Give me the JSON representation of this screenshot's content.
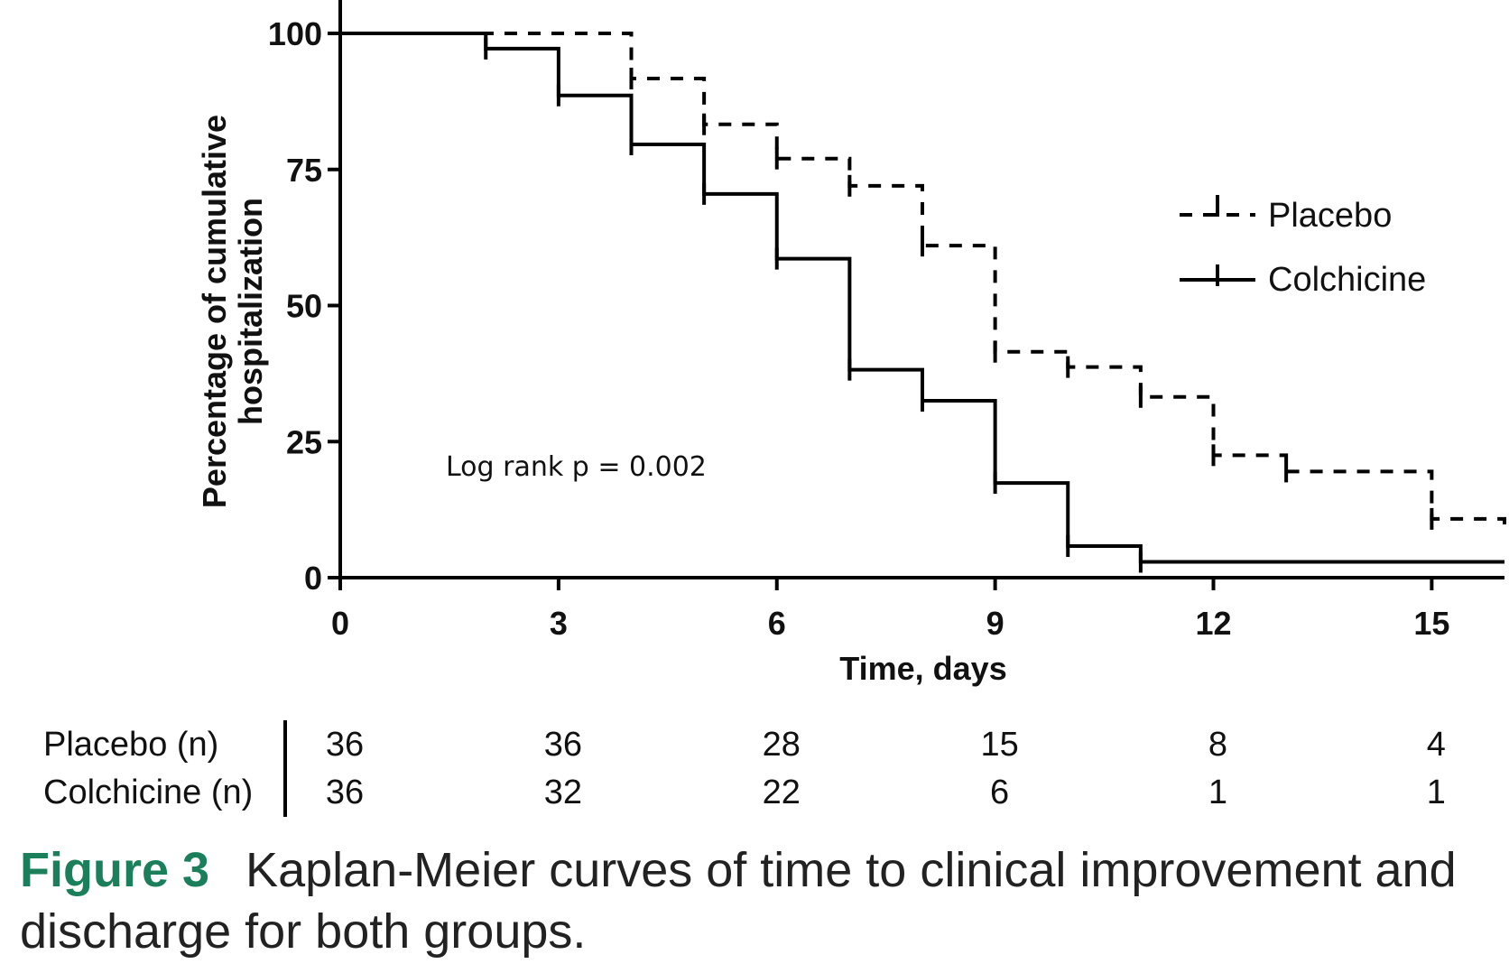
{
  "chart_data": {
    "type": "line",
    "title": "",
    "xlabel": "Time, days",
    "ylabel_lines": [
      "Percentage of cumulative",
      "hospitalization"
    ],
    "xlim": [
      0,
      16
    ],
    "ylim": [
      0,
      100
    ],
    "xticks": [
      0,
      3,
      6,
      9,
      12,
      15
    ],
    "yticks": [
      0,
      25,
      50,
      75,
      100
    ],
    "grid": false,
    "legend_position": "top-right",
    "annotation": "Log rank p = 0.002",
    "series": [
      {
        "name": "Placebo",
        "style": "dashed",
        "color": "#000000",
        "steps": [
          [
            0,
            100
          ],
          [
            4,
            91.7
          ],
          [
            5,
            83.3
          ],
          [
            6,
            77.0
          ],
          [
            7,
            72.0
          ],
          [
            8,
            61.0
          ],
          [
            9,
            41.5
          ],
          [
            10,
            38.7
          ],
          [
            11,
            33.2
          ],
          [
            12,
            22.5
          ],
          [
            13,
            19.5
          ],
          [
            15,
            10.8
          ],
          [
            16,
            8.0
          ]
        ]
      },
      {
        "name": "Colchicine",
        "style": "solid",
        "color": "#000000",
        "steps": [
          [
            0,
            100
          ],
          [
            2,
            97.2
          ],
          [
            3,
            88.6
          ],
          [
            4,
            79.6
          ],
          [
            5,
            70.5
          ],
          [
            6,
            58.6
          ],
          [
            7,
            38.2
          ],
          [
            8,
            32.5
          ],
          [
            9,
            17.4
          ],
          [
            10,
            5.8
          ],
          [
            11,
            2.9
          ],
          [
            16,
            2.9
          ]
        ]
      }
    ],
    "risk_table": {
      "rows": [
        {
          "label": "Placebo (n)",
          "values": [
            "36",
            "36",
            "28",
            "15",
            "8",
            "4"
          ]
        },
        {
          "label": "Colchicine (n)",
          "values": [
            "36",
            "32",
            "22",
            "6",
            "1",
            "1"
          ]
        }
      ]
    }
  },
  "caption": {
    "label": "Figure 3",
    "text": "Kaplan-Meier curves of time to clinical improvement and discharge for both groups."
  }
}
